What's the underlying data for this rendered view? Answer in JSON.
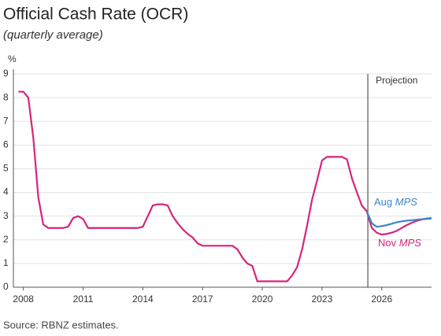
{
  "chart_data": {
    "type": "line",
    "title": "Official Cash Rate (OCR)",
    "subtitle": "(quarterly average)",
    "y_label": "%",
    "annotation": "Projection",
    "projection_start": 2025.3,
    "source": "Source: RBNZ estimates.",
    "xlim": [
      2007.5,
      2028.5
    ],
    "xticks": [
      2008,
      2011,
      2014,
      2017,
      2020,
      2023,
      2026
    ],
    "ylim": [
      0,
      9
    ],
    "yticks": [
      0,
      1,
      2,
      3,
      4,
      5,
      6,
      7,
      8,
      9
    ],
    "grid": true,
    "x": [
      2007.75,
      2008.0,
      2008.25,
      2008.5,
      2008.75,
      2009.0,
      2009.25,
      2009.5,
      2009.75,
      2010.0,
      2010.25,
      2010.5,
      2010.75,
      2011.0,
      2011.25,
      2011.5,
      2011.75,
      2012.0,
      2012.25,
      2012.5,
      2012.75,
      2013.0,
      2013.25,
      2013.5,
      2013.75,
      2014.0,
      2014.25,
      2014.5,
      2014.75,
      2015.0,
      2015.25,
      2015.5,
      2015.75,
      2016.0,
      2016.25,
      2016.5,
      2016.75,
      2017.0,
      2017.25,
      2017.5,
      2017.75,
      2018.0,
      2018.25,
      2018.5,
      2018.75,
      2019.0,
      2019.25,
      2019.5,
      2019.75,
      2020.0,
      2020.25,
      2020.5,
      2020.75,
      2021.0,
      2021.25,
      2021.5,
      2021.75,
      2022.0,
      2022.25,
      2022.5,
      2022.75,
      2023.0,
      2023.25,
      2023.5,
      2023.75,
      2024.0,
      2024.25,
      2024.5,
      2024.75,
      2025.0,
      2025.25,
      2025.5,
      2025.75,
      2026.0,
      2026.25,
      2026.5,
      2026.75,
      2027.0,
      2027.25,
      2027.5,
      2027.75,
      2028.0,
      2028.25,
      2028.5
    ],
    "series": [
      {
        "name": "Nov MPS",
        "color": "#d6247c",
        "values": [
          8.25,
          8.25,
          8.0,
          6.3,
          3.8,
          2.65,
          2.5,
          2.5,
          2.5,
          2.5,
          2.55,
          2.92,
          3.0,
          2.88,
          2.5,
          2.5,
          2.5,
          2.5,
          2.5,
          2.5,
          2.5,
          2.5,
          2.5,
          2.5,
          2.5,
          2.55,
          3.0,
          3.45,
          3.5,
          3.5,
          3.45,
          3.0,
          2.7,
          2.45,
          2.25,
          2.1,
          1.85,
          1.75,
          1.75,
          1.75,
          1.75,
          1.75,
          1.75,
          1.75,
          1.6,
          1.25,
          1.0,
          0.9,
          0.25,
          0.25,
          0.25,
          0.25,
          0.25,
          0.25,
          0.25,
          0.5,
          0.85,
          1.6,
          2.6,
          3.7,
          4.5,
          5.35,
          5.5,
          5.5,
          5.5,
          5.5,
          5.4,
          4.6,
          4.0,
          3.45,
          3.2,
          2.5,
          2.3,
          2.22,
          2.25,
          2.3,
          2.38,
          2.5,
          2.62,
          2.72,
          2.8,
          2.86,
          2.9,
          2.92
        ]
      },
      {
        "name": "Aug MPS",
        "color": "#3a86c8",
        "values": [
          null,
          null,
          null,
          null,
          null,
          null,
          null,
          null,
          null,
          null,
          null,
          null,
          null,
          null,
          null,
          null,
          null,
          null,
          null,
          null,
          null,
          null,
          null,
          null,
          null,
          null,
          null,
          null,
          null,
          null,
          null,
          null,
          null,
          null,
          null,
          null,
          null,
          null,
          null,
          null,
          null,
          null,
          null,
          null,
          null,
          null,
          null,
          null,
          null,
          null,
          null,
          null,
          null,
          null,
          null,
          null,
          null,
          null,
          null,
          null,
          null,
          null,
          null,
          null,
          null,
          null,
          null,
          null,
          null,
          null,
          3.2,
          2.7,
          2.55,
          2.58,
          2.62,
          2.68,
          2.74,
          2.78,
          2.81,
          2.83,
          2.85,
          2.87,
          2.88,
          2.9
        ]
      }
    ]
  }
}
